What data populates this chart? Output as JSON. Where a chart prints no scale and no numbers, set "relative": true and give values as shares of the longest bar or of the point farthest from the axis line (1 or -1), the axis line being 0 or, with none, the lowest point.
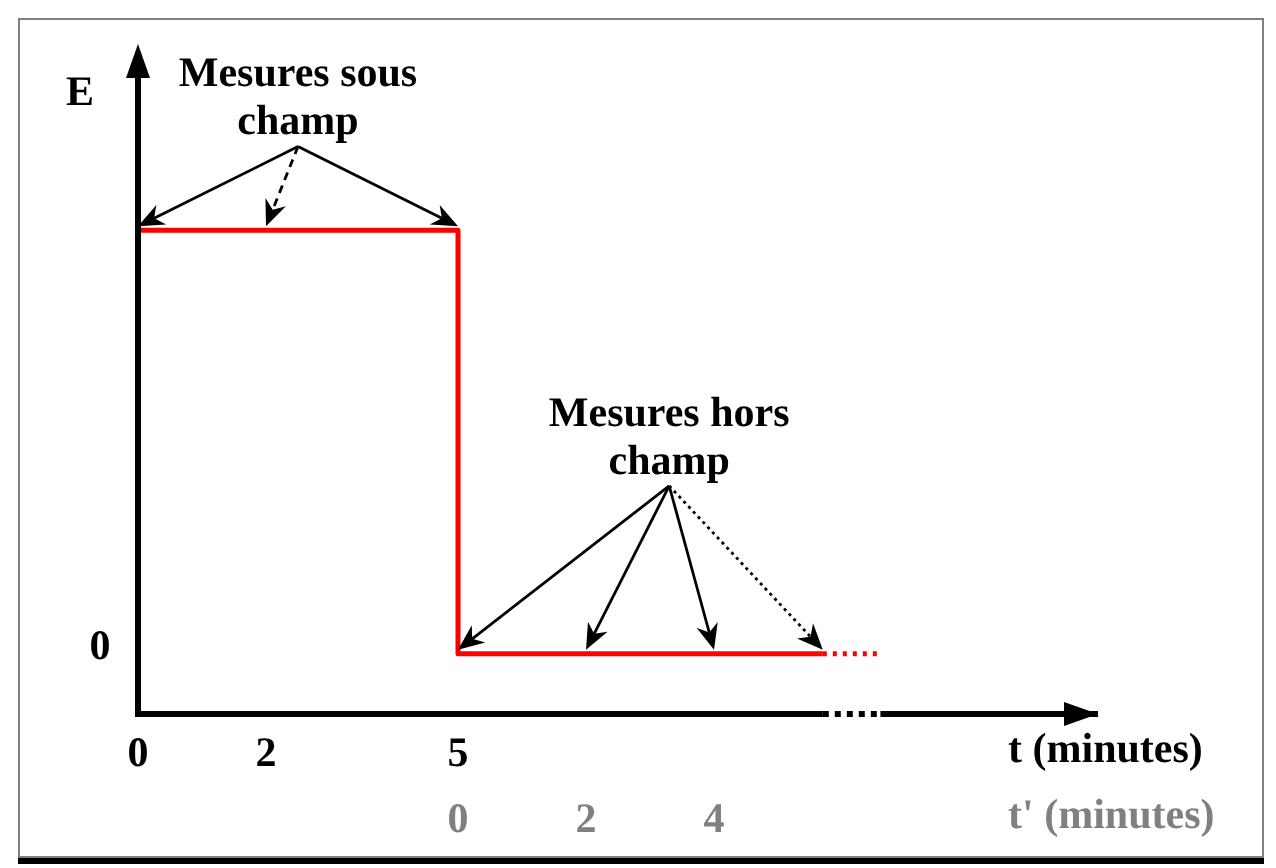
{
  "chart_data": {
    "type": "step",
    "ylabel": "E",
    "xlabel": "t (minutes)",
    "x2label": "t' (minutes)",
    "relative": true,
    "series": [
      {
        "color": "#ff0000",
        "x": [
          0,
          5,
          10.7
        ],
        "values": [
          1,
          0,
          0
        ]
      },
      {
        "type": "line",
        "color": "#ff0000",
        "line_style": "dotted",
        "x": [
          10.7,
          11.6
        ],
        "values": [
          0,
          0
        ]
      }
    ],
    "xlim": [
      0,
      15
    ],
    "xticks": [
      0,
      2,
      5
    ],
    "x2lim": [
      -5,
      10
    ],
    "x2ticks": [
      0,
      2,
      4
    ],
    "annotations": [
      "0",
      "Mesures sous champ",
      "Mesures hors champ"
    ]
  }
}
